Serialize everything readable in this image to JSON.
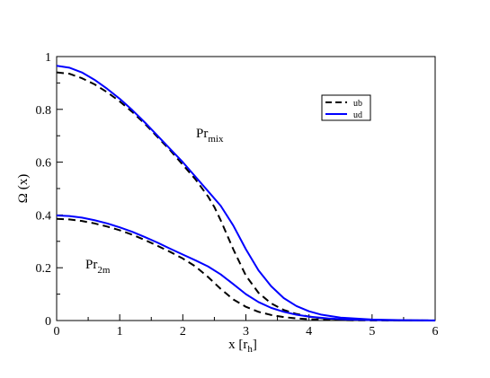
{
  "chart_data": {
    "type": "line",
    "title": "",
    "xlabel_main": "x  [r",
    "xlabel_sub": "h",
    "xlabel_close": "]",
    "ylabel": "Ω (x)",
    "xlim": [
      0,
      6
    ],
    "ylim": [
      0,
      1
    ],
    "xticks": [
      "0",
      "1",
      "2",
      "3",
      "4",
      "5",
      "6"
    ],
    "yticks": [
      "0",
      "0.2",
      "0.4",
      "0.6",
      "0.8",
      "1"
    ],
    "grid": false,
    "legend_position": "top-right",
    "legend": [
      {
        "name": "ub",
        "color": "#000000",
        "dash": "dashed"
      },
      {
        "name": "ud",
        "color": "#0000ff",
        "dash": "solid"
      }
    ],
    "annotations": [
      {
        "base": "Pr",
        "sub": "mix"
      },
      {
        "base": "Pr",
        "sub": "2m"
      }
    ],
    "series": [
      {
        "group": "Pr_mix",
        "legend_ref": "ub",
        "color": "#000000",
        "dash": "dashed",
        "x": [
          0,
          0.2,
          0.4,
          0.6,
          0.8,
          1.0,
          1.2,
          1.4,
          1.6,
          1.8,
          2.0,
          2.2,
          2.4,
          2.5,
          2.6,
          2.8,
          3.0,
          3.2,
          3.4,
          3.6,
          3.8,
          4.0,
          4.2,
          4.5,
          5.0,
          5.5,
          6.0
        ],
        "y": [
          0.94,
          0.935,
          0.918,
          0.895,
          0.865,
          0.83,
          0.79,
          0.745,
          0.695,
          0.645,
          0.59,
          0.535,
          0.47,
          0.43,
          0.38,
          0.27,
          0.17,
          0.105,
          0.065,
          0.04,
          0.025,
          0.015,
          0.009,
          0.004,
          0.0015,
          0.0005,
          0.0002
        ]
      },
      {
        "group": "Pr_mix",
        "legend_ref": "ud",
        "color": "#0000ff",
        "dash": "solid",
        "x": [
          0,
          0.2,
          0.4,
          0.6,
          0.8,
          1.0,
          1.2,
          1.4,
          1.6,
          1.8,
          2.0,
          2.2,
          2.4,
          2.6,
          2.8,
          3.0,
          3.2,
          3.4,
          3.6,
          3.8,
          4.0,
          4.2,
          4.5,
          5.0,
          5.5,
          6.0
        ],
        "y": [
          0.965,
          0.958,
          0.94,
          0.912,
          0.878,
          0.84,
          0.797,
          0.75,
          0.7,
          0.65,
          0.6,
          0.545,
          0.49,
          0.435,
          0.36,
          0.27,
          0.19,
          0.13,
          0.085,
          0.055,
          0.035,
          0.022,
          0.011,
          0.004,
          0.0013,
          0.0004
        ]
      },
      {
        "group": "Pr_2m",
        "legend_ref": "ub",
        "color": "#000000",
        "dash": "dashed",
        "x": [
          0,
          0.2,
          0.4,
          0.6,
          0.8,
          1.0,
          1.2,
          1.4,
          1.6,
          1.8,
          2.0,
          2.2,
          2.4,
          2.6,
          2.8,
          3.0,
          3.2,
          3.4,
          3.6,
          3.8,
          4.0,
          4.3,
          4.6,
          5.0,
          6.0
        ],
        "y": [
          0.385,
          0.383,
          0.377,
          0.368,
          0.356,
          0.342,
          0.325,
          0.305,
          0.283,
          0.26,
          0.235,
          0.205,
          0.165,
          0.12,
          0.08,
          0.052,
          0.033,
          0.021,
          0.013,
          0.008,
          0.005,
          0.0025,
          0.0012,
          0.0005,
          0.0001
        ]
      },
      {
        "group": "Pr_2m",
        "legend_ref": "ud",
        "color": "#0000ff",
        "dash": "solid",
        "x": [
          0,
          0.2,
          0.4,
          0.6,
          0.8,
          1.0,
          1.2,
          1.4,
          1.6,
          1.8,
          2.0,
          2.2,
          2.4,
          2.6,
          2.8,
          3.0,
          3.2,
          3.4,
          3.6,
          3.8,
          4.0,
          4.3,
          4.6,
          5.0,
          6.0
        ],
        "y": [
          0.398,
          0.396,
          0.39,
          0.38,
          0.368,
          0.353,
          0.336,
          0.316,
          0.295,
          0.272,
          0.25,
          0.228,
          0.205,
          0.175,
          0.138,
          0.1,
          0.07,
          0.048,
          0.033,
          0.022,
          0.015,
          0.008,
          0.004,
          0.0017,
          0.0002
        ]
      }
    ]
  }
}
